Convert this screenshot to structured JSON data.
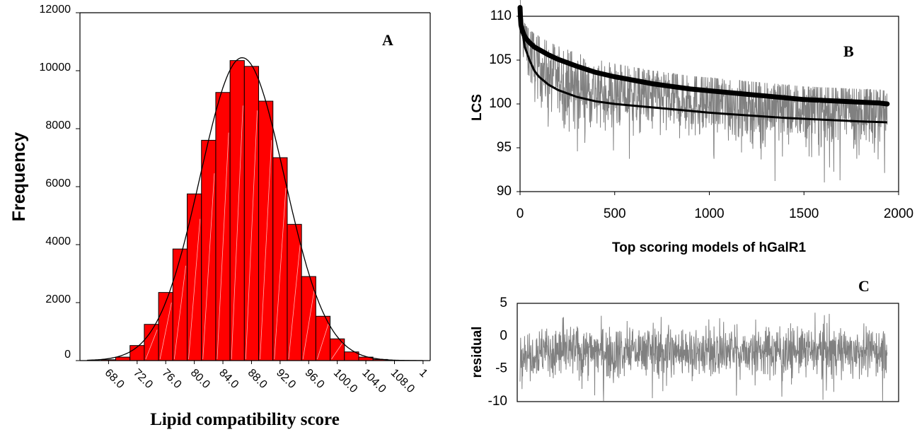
{
  "chart_data": [
    {
      "panel": "A",
      "type": "bar",
      "panel_label": "A",
      "xlabel": "Lipid compatibility score",
      "ylabel": "Frequency",
      "ylim": [
        0,
        12000
      ],
      "yticks": [
        0,
        2000,
        4000,
        6000,
        8000,
        10000,
        12000
      ],
      "xticks": [
        "68.0",
        "72.0",
        "76.0",
        "80.0",
        "84.0",
        "88.0",
        "92.0",
        "96.0",
        "100.0",
        "104.0",
        "108.0",
        "1"
      ],
      "bin_start": 65,
      "bin_width": 2,
      "values": [
        5,
        30,
        120,
        520,
        1250,
        2350,
        3850,
        5750,
        7600,
        9250,
        10350,
        10150,
        8950,
        7000,
        4700,
        2900,
        1530,
        750,
        300,
        120,
        40,
        10,
        3,
        0
      ],
      "normal_curve": {
        "mean": 86.7,
        "sd": 5.9,
        "peak": 10450
      },
      "bar_color": "#ff0000",
      "grid": false
    },
    {
      "panel": "B",
      "type": "line",
      "panel_label": "B",
      "xlabel": "Top scoring models of hGalR1",
      "ylabel": "LCS",
      "xlim": [
        0,
        2000
      ],
      "ylim": [
        90,
        110
      ],
      "xticks": [
        0,
        500,
        1000,
        1500,
        2000
      ],
      "yticks": [
        90,
        95,
        100,
        105,
        110
      ],
      "series": [
        {
          "color": "#000000",
          "x": [
            0,
            2,
            5,
            10,
            20,
            30,
            50,
            75,
            100,
            150,
            200,
            300,
            400,
            500,
            600,
            700,
            800,
            900,
            1000,
            1100,
            1200,
            1300,
            1400,
            1500,
            1600,
            1700,
            1800,
            1900,
            1940
          ],
          "values": [
            111.0,
            110.0,
            109.0,
            108.5,
            107.9,
            107.5,
            107.0,
            106.5,
            106.2,
            105.6,
            105.1,
            104.3,
            103.6,
            103.1,
            102.7,
            102.3,
            102.0,
            101.7,
            101.5,
            101.3,
            101.1,
            100.9,
            100.7,
            100.5,
            100.4,
            100.3,
            100.2,
            100.1,
            100.0
          ]
        },
        {
          "color": "#000000",
          "x": [
            0,
            10,
            25,
            50,
            75,
            100,
            150,
            200,
            300,
            400,
            500,
            600,
            800,
            1000,
            1200,
            1400,
            1600,
            1800,
            1940
          ],
          "values": [
            110.0,
            108.5,
            106.5,
            105.0,
            103.8,
            103.1,
            102.2,
            101.6,
            100.8,
            100.3,
            100.0,
            99.8,
            99.4,
            99.0,
            98.7,
            98.4,
            98.2,
            98.0,
            97.9
          ]
        },
        {
          "color": "#808080",
          "x_range": [
            0,
            1940
          ],
          "amplitude": "±4 around smooth fit",
          "description_points": [
            [
              0,
              110
            ],
            [
              50,
              104
            ],
            [
              500,
              99.5
            ],
            [
              1000,
              99
            ],
            [
              1500,
              98.5
            ],
            [
              1940,
              97.5
            ]
          ]
        }
      ],
      "grid": false
    },
    {
      "panel": "C",
      "type": "line",
      "panel_label": "C",
      "xlabel": "",
      "ylabel": "residual",
      "ylim": [
        -10,
        5
      ],
      "yticks": [
        -10,
        -5,
        0,
        5
      ],
      "x_range": [
        0,
        1940
      ],
      "series": [
        {
          "color": "#808080",
          "mean": -2.3,
          "amplitude": 3.5,
          "min": -10,
          "max": 4.5
        }
      ],
      "grid": false
    }
  ]
}
